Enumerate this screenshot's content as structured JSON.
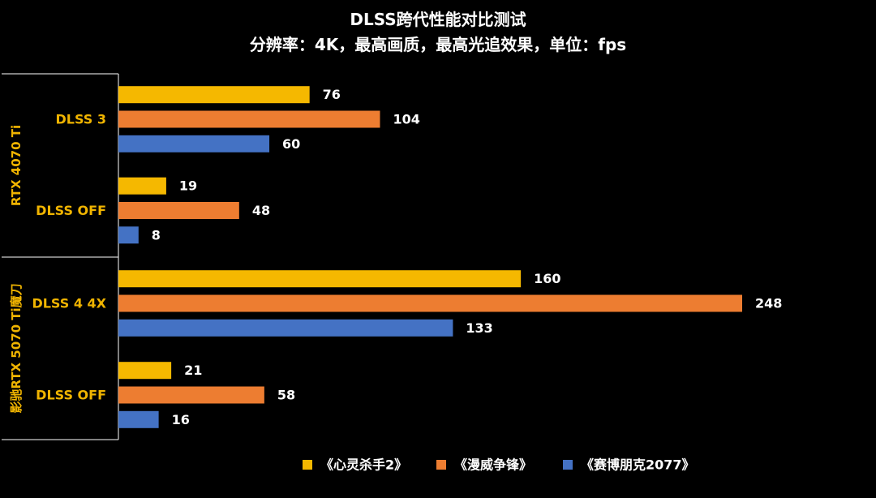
{
  "chart_data": {
    "type": "bar",
    "orientation": "horizontal",
    "title": "DLSS跨代性能对比测试",
    "subtitle": "分辨率：4K，最高画质，最高光追效果，单位：fps",
    "groups": [
      {
        "label": "RTX 4070 Ti",
        "categories": [
          {
            "label": "DLSS 3",
            "values": [
              76,
              104,
              60
            ]
          },
          {
            "label": "DLSS OFF",
            "values": [
              19,
              48,
              8
            ]
          }
        ]
      },
      {
        "label": "影驰RTX 5070 Ti魔刀",
        "categories": [
          {
            "label": "DLSS 4 4X",
            "values": [
              160,
              248,
              133
            ]
          },
          {
            "label": "DLSS OFF",
            "values": [
              21,
              58,
              16
            ]
          }
        ]
      }
    ],
    "series": [
      {
        "name": "《心灵杀手2》",
        "color": "#f5b800"
      },
      {
        "name": "《漫威争锋》",
        "color": "#ed7d31"
      },
      {
        "name": "《赛博朋克2077》",
        "color": "#4472c4"
      }
    ],
    "xlim": [
      0,
      248
    ],
    "grid": false,
    "legend": "bottom-right"
  }
}
